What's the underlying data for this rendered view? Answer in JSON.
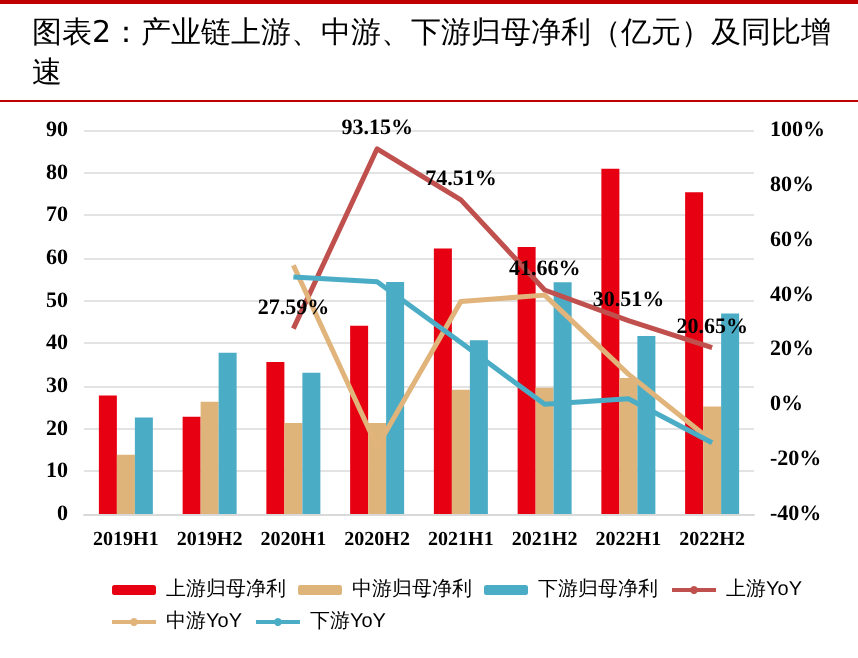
{
  "chart_data": {
    "type": "bar",
    "title": "图表2：产业链上游、中游、下游归母净利（亿元）及同比增速",
    "categories": [
      "2019H1",
      "2019H2",
      "2020H1",
      "2020H2",
      "2021H1",
      "2021H2",
      "2022H1",
      "2022H2"
    ],
    "series": [
      {
        "name": "上游归母净利",
        "color": "#e60012",
        "values": [
          27.8,
          22.8,
          35.6,
          44.1,
          62.2,
          62.6,
          80.9,
          75.4
        ]
      },
      {
        "name": "中游归母净利",
        "color": "#dfb47a",
        "values": [
          13.9,
          26.3,
          21.3,
          21.3,
          29.1,
          29.6,
          31.9,
          25.2
        ]
      },
      {
        "name": "下游归母净利",
        "color": "#4bacc6",
        "values": [
          22.6,
          37.8,
          33.1,
          54.4,
          40.7,
          54.3,
          41.7,
          47.0
        ]
      },
      {
        "name": "上游YoY",
        "type": "line",
        "axis": "y2",
        "color": "#c0504d",
        "values": [
          null,
          null,
          27.59,
          93.15,
          74.51,
          41.66,
          30.51,
          20.65
        ],
        "value_labels": [
          null,
          null,
          "27.59%",
          "93.15%",
          "74.51%",
          "41.66%",
          "30.51%",
          "20.65%"
        ]
      },
      {
        "name": "中游YoY",
        "type": "line",
        "axis": "y2",
        "color": "#e0b47a",
        "values": [
          null,
          null,
          50.7,
          -15.6,
          37.5,
          39.8,
          11,
          -13.5
        ]
      },
      {
        "name": "下游YoY",
        "type": "line",
        "axis": "y2",
        "color": "#4bacc6",
        "values": [
          null,
          null,
          46.4,
          44.7,
          22.5,
          0,
          2,
          -14
        ]
      }
    ],
    "ylim": [
      0,
      90
    ],
    "yticks": [
      0,
      10,
      20,
      30,
      40,
      50,
      60,
      70,
      80,
      90
    ],
    "y2lim": [
      -40,
      100
    ],
    "y2ticks": [
      {
        "value": -40,
        "label": "-40%"
      },
      {
        "value": -20,
        "label": "-20%"
      },
      {
        "value": 0,
        "label": "0%"
      },
      {
        "value": 20,
        "label": "20%"
      },
      {
        "value": 40,
        "label": "40%"
      },
      {
        "value": 60,
        "label": "60%"
      },
      {
        "value": 80,
        "label": "80%"
      },
      {
        "value": 100,
        "label": "100%"
      }
    ],
    "grid": "y",
    "legend": "bottom",
    "marker": "none",
    "line_style": "solid"
  }
}
